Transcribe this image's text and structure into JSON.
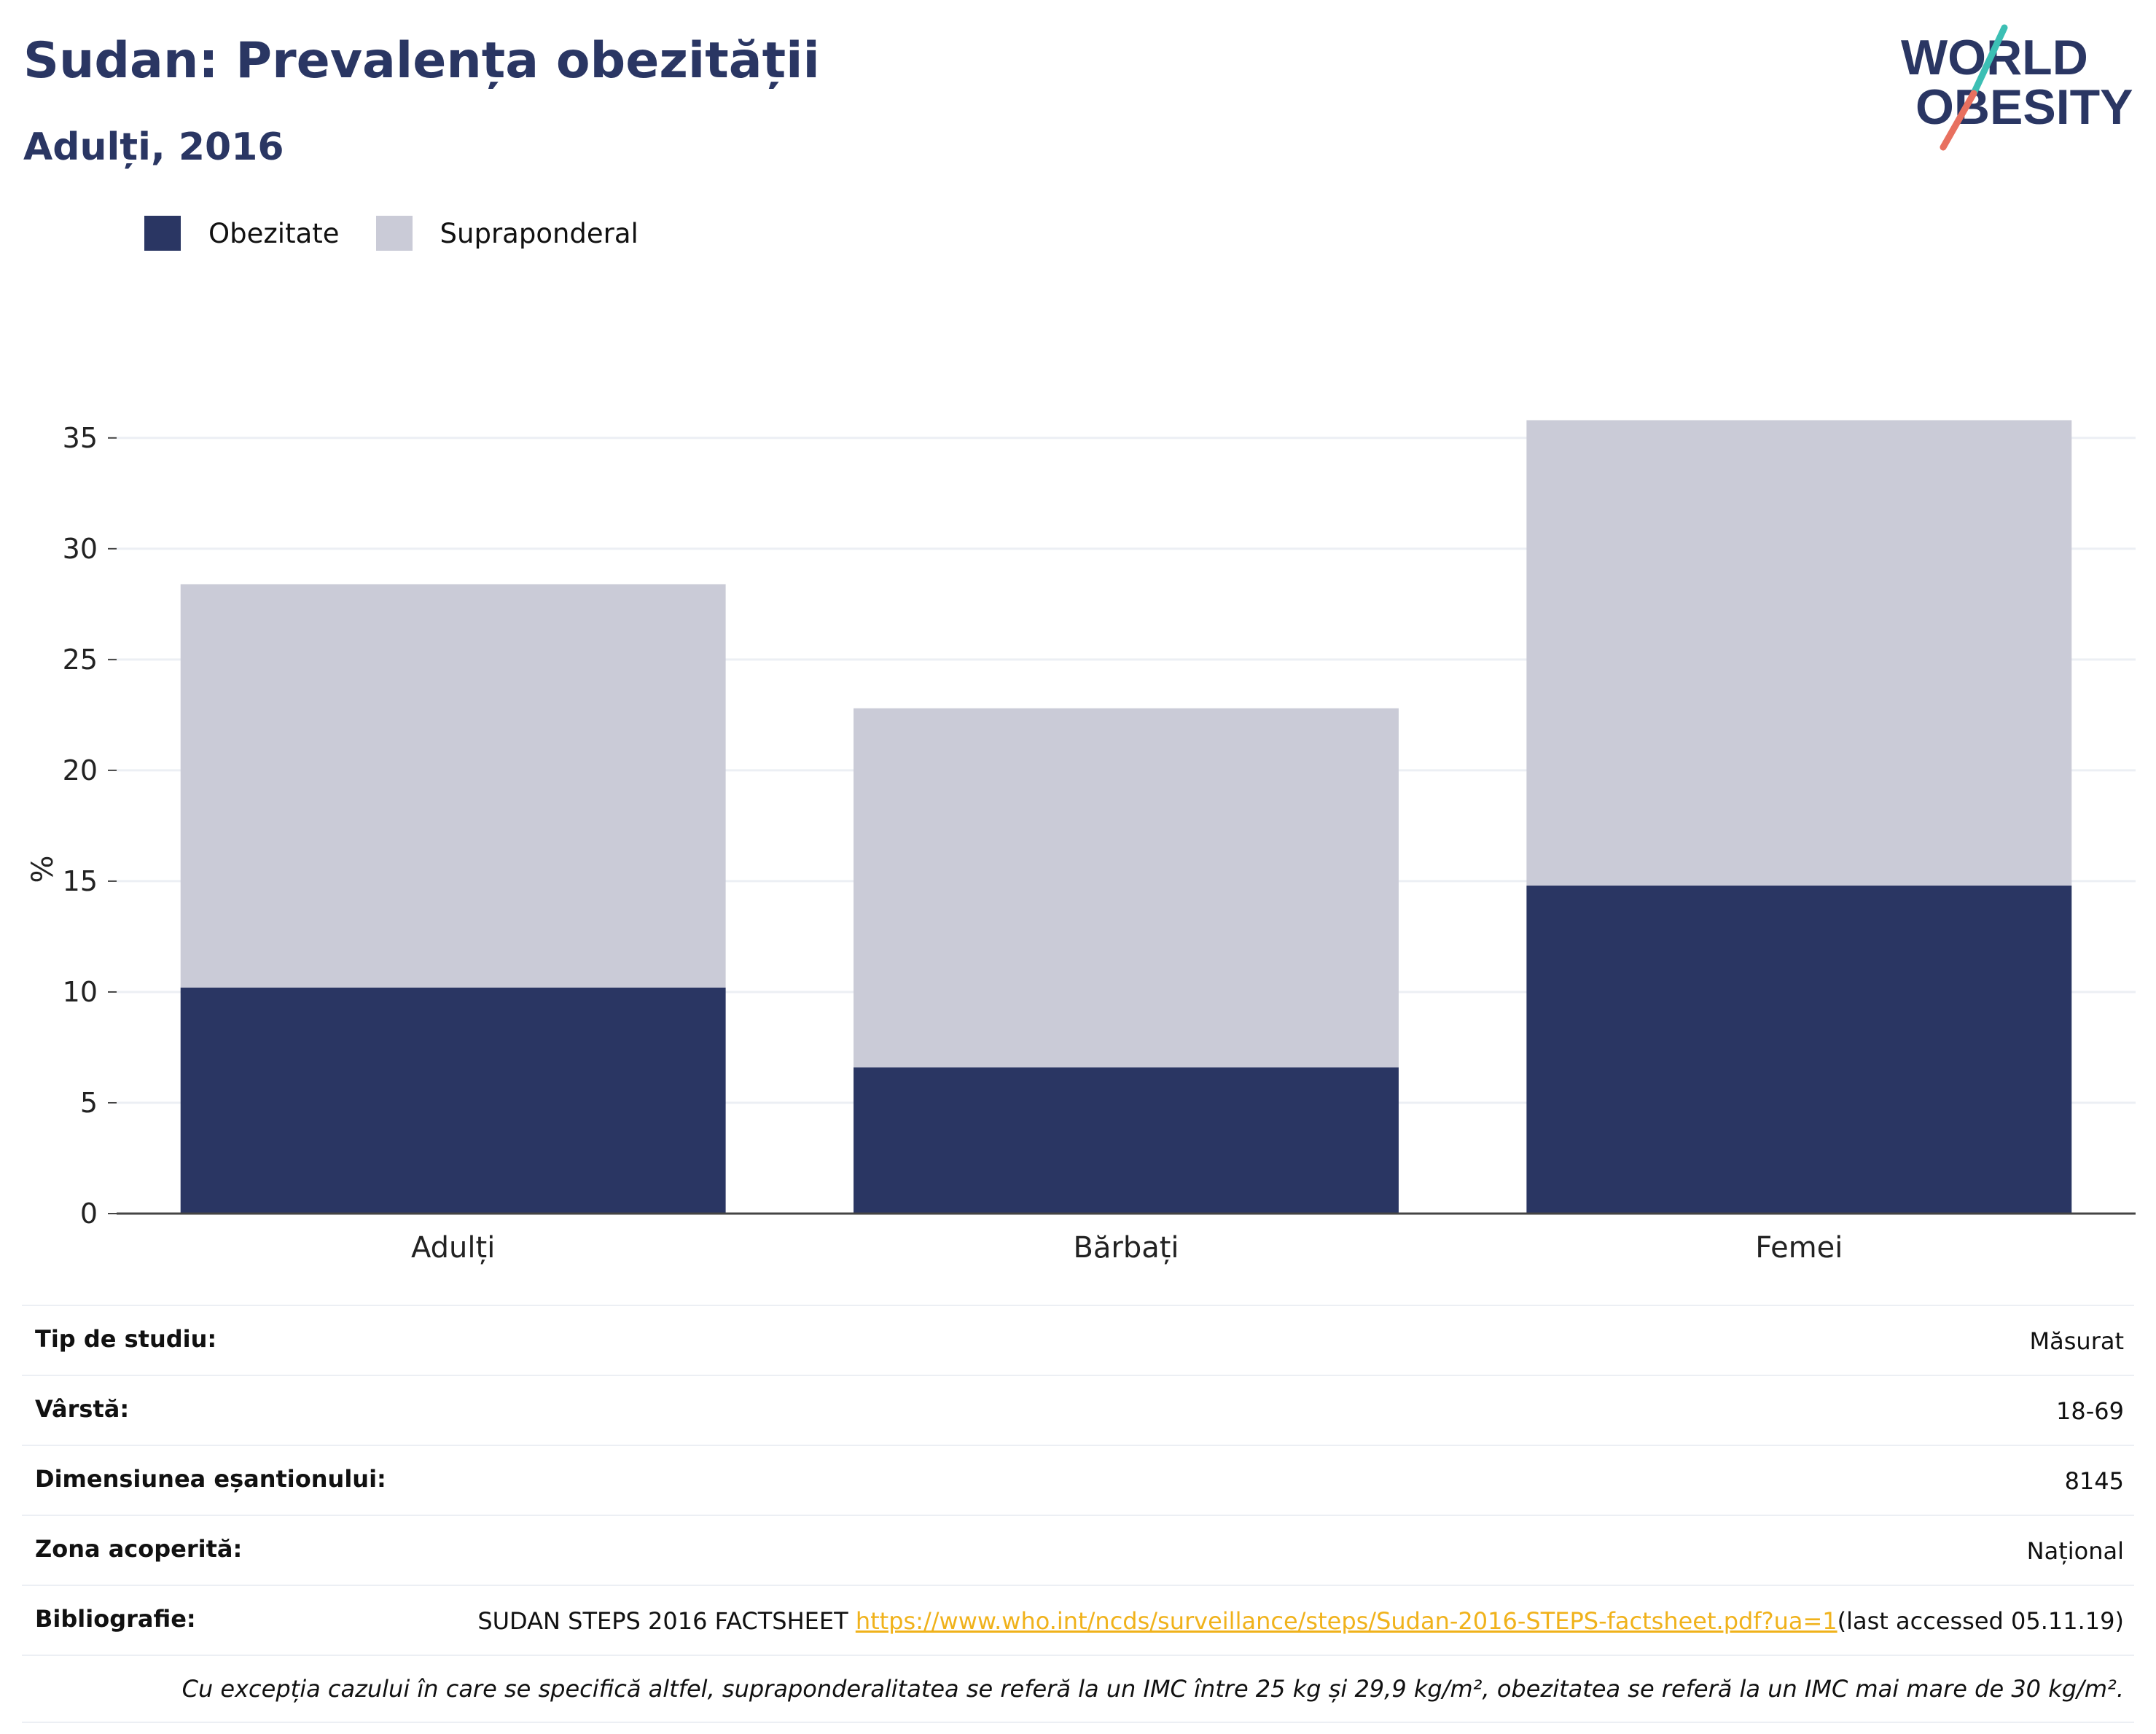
{
  "header": {
    "title": "Sudan: Prevalența obezității",
    "subtitle": "Adulți, 2016"
  },
  "logo": {
    "line1": "WORLD",
    "line2": "OBESITY"
  },
  "colors": {
    "obesity": "#2a3663",
    "overweight": "#cacbd7",
    "title": "#2a3663",
    "link": "#f0b21b",
    "logo_teal": "#3cbfb4",
    "logo_coral": "#e8705f"
  },
  "legend": [
    {
      "label": "Obezitate",
      "color": "#2a3663"
    },
    {
      "label": "Supraponderal",
      "color": "#cacbd7"
    }
  ],
  "chart_data": {
    "type": "bar",
    "stacked": true,
    "categories": [
      "Adulți",
      "Bărbați",
      "Femei"
    ],
    "series": [
      {
        "name": "Obezitate",
        "values": [
          10.2,
          6.6,
          14.8
        ]
      },
      {
        "name": "Supraponderal",
        "values": [
          18.2,
          16.2,
          21.0
        ]
      }
    ],
    "ylabel": "%",
    "ylim": [
      0,
      37
    ],
    "yticks": [
      0,
      5,
      10,
      15,
      20,
      25,
      30,
      35
    ],
    "grid": true,
    "legend_position": "top-left"
  },
  "info": [
    {
      "key": "Tip de studiu:",
      "value": "Măsurat"
    },
    {
      "key": "Vârstă:",
      "value": "18-69"
    },
    {
      "key": "Dimensiunea eșantionului:",
      "value": "8145"
    },
    {
      "key": "Zona acoperită:",
      "value": "Național"
    }
  ],
  "bibliography": {
    "key": "Bibliografie:",
    "text": "SUDAN STEPS 2016 FACTSHEET ",
    "link": "https://www.who.int/ncds/surveillance/steps/Sudan-2016-STEPS-factsheet.pdf?ua=1",
    "suffix": "(last accessed 05.11.19)"
  },
  "note": "Cu excepția cazului în care se specifică altfel, supraponderalitatea se referă la un IMC între 25 kg și 29,9 kg/m², obezitatea se referă la un IMC mai mare de 30 kg/m²."
}
